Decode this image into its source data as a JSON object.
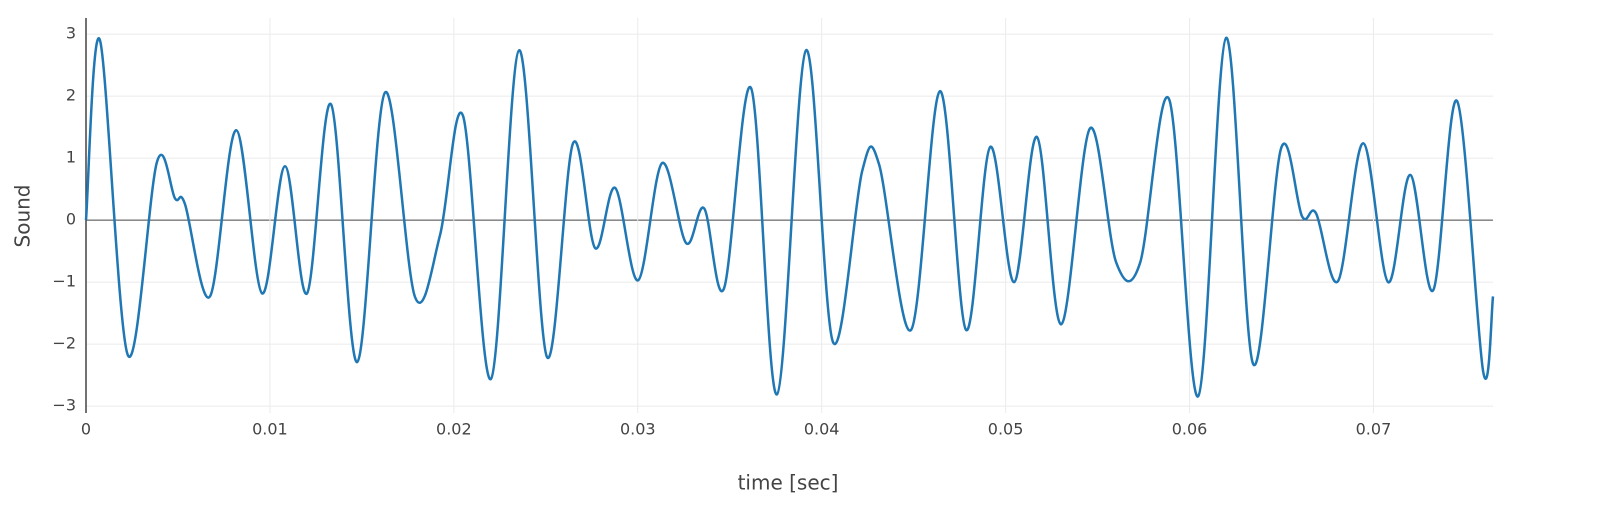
{
  "chart_data": {
    "type": "line",
    "xlabel": "time [sec]",
    "ylabel": "Sound",
    "x": [
      0,
      0.00076,
      0.00228,
      0.00386,
      0.00484,
      0.00538,
      0.00674,
      0.00816,
      0.00957,
      0.01082,
      0.01202,
      0.01332,
      0.01474,
      0.01626,
      0.01789,
      0.01925,
      0.0205,
      0.02202,
      0.02355,
      0.02507,
      0.02648,
      0.02768,
      0.02877,
      0.03002,
      0.03132,
      0.03263,
      0.03361,
      0.03469,
      0.03616,
      0.03757,
      0.03915,
      0.04062,
      0.0422,
      0.04312,
      0.04486,
      0.04644,
      0.04785,
      0.04916,
      0.05046,
      0.05171,
      0.05302,
      0.05459,
      0.05601,
      0.05731,
      0.05889,
      0.06047,
      0.06199,
      0.06346,
      0.06498,
      0.06612,
      0.06688,
      0.06808,
      0.06944,
      0.0708,
      0.072,
      0.07325,
      0.07455,
      0.07597,
      0.0765
    ],
    "series": [
      {
        "color": "#1f77b4",
        "values": [
          0,
          2.9,
          -2.18,
          0.94,
          0.35,
          0.26,
          -1.23,
          1.45,
          -1.18,
          0.87,
          -1.18,
          1.87,
          -2.29,
          2.06,
          -1.24,
          -0.24,
          1.68,
          -2.56,
          2.74,
          -2.21,
          1.24,
          -0.45,
          0.52,
          -0.97,
          0.92,
          -0.37,
          0.19,
          -1.1,
          2.13,
          -2.81,
          2.74,
          -1.97,
          0.79,
          0.9,
          -1.77,
          2.08,
          -1.77,
          1.18,
          -1.0,
          1.34,
          -1.68,
          1.48,
          -0.68,
          -0.69,
          1.95,
          -2.84,
          2.94,
          -2.32,
          1.16,
          0.06,
          0.11,
          -0.98,
          1.24,
          -1.0,
          0.73,
          -1.13,
          1.92,
          -2.45,
          -1.23
        ]
      }
    ],
    "xlim": [
      0,
      0.0765
    ],
    "ylim": [
      -3.11,
      3.26
    ],
    "xticks": [
      0,
      0.01,
      0.02,
      0.03,
      0.04,
      0.05,
      0.06,
      0.07
    ],
    "yticks": [
      {
        "value": -3,
        "label": "−3"
      },
      {
        "value": -2,
        "label": "−2"
      },
      {
        "value": -1,
        "label": "−1"
      },
      0,
      1,
      2,
      3
    ],
    "grid": true
  }
}
